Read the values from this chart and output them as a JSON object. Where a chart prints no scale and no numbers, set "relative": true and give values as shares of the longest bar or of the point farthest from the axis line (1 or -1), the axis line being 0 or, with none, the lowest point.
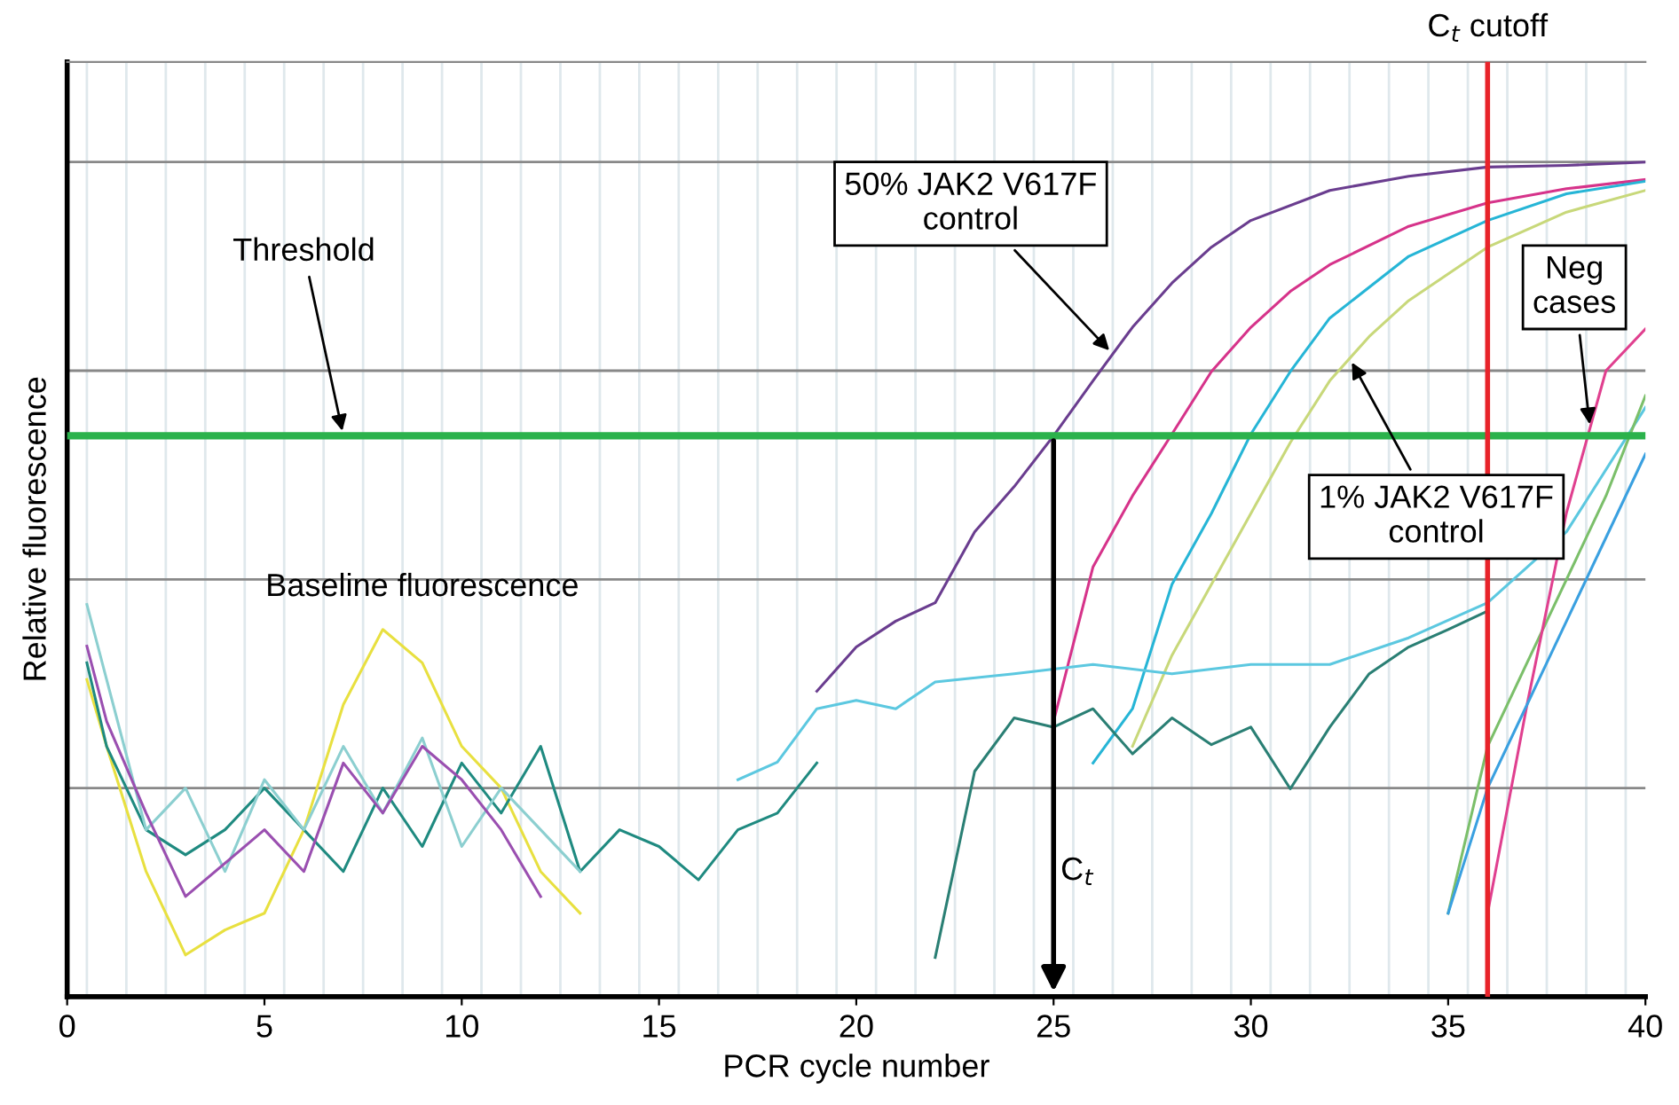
{
  "chart_data": {
    "type": "line",
    "relative": true,
    "xlabel": "PCR cycle number",
    "ylabel": "Relative fluorescence",
    "xlim": [
      0,
      40
    ],
    "xticks": [
      0,
      5,
      10,
      15,
      20,
      25,
      30,
      35,
      40
    ],
    "grid": true,
    "marker": "none",
    "line_style": "solid",
    "series": [
      {
        "color": "#6a3d8f",
        "x": [
          19,
          20,
          21,
          22,
          23,
          24,
          25,
          26,
          27,
          28,
          29,
          30,
          32,
          34,
          36,
          38,
          40
        ],
        "values": [
          0.366,
          0.419,
          0.45,
          0.472,
          0.557,
          0.611,
          0.672,
          0.738,
          0.802,
          0.855,
          0.898,
          0.93,
          0.966,
          0.983,
          0.994,
          0.996,
          1.0
        ]
      },
      {
        "color": "#d6338a",
        "x": [
          25,
          26,
          27,
          28,
          29,
          30,
          31,
          32,
          34,
          36,
          38,
          40
        ],
        "values": [
          0.33,
          0.515,
          0.6,
          0.674,
          0.749,
          0.802,
          0.845,
          0.877,
          0.923,
          0.951,
          0.968,
          0.979
        ]
      },
      {
        "color": "#26b5d6",
        "x": [
          26,
          27,
          28,
          29,
          30,
          31,
          32,
          34,
          36,
          38,
          40
        ],
        "values": [
          0.28,
          0.345,
          0.494,
          0.579,
          0.674,
          0.749,
          0.813,
          0.887,
          0.93,
          0.962,
          0.977
        ]
      },
      {
        "color": "#c8d87a",
        "x": [
          27,
          28,
          29,
          30,
          31,
          32,
          33,
          34,
          36,
          38,
          40
        ],
        "values": [
          0.3,
          0.409,
          0.494,
          0.579,
          0.664,
          0.738,
          0.791,
          0.834,
          0.898,
          0.94,
          0.966
        ]
      },
      {
        "color": "#2a7f74",
        "x": [
          22,
          23,
          24,
          25,
          26,
          27,
          28,
          29,
          30,
          31,
          32,
          33,
          34,
          35,
          36
        ],
        "values": [
          0.047,
          0.27,
          0.334,
          0.323,
          0.345,
          0.291,
          0.334,
          0.302,
          0.323,
          0.249,
          0.323,
          0.387,
          0.419,
          0.44,
          0.462
        ]
      },
      {
        "color": "#5cc8e0",
        "x": [
          17,
          18,
          19,
          20,
          21,
          22,
          24,
          26,
          28,
          30,
          32,
          34,
          36,
          38,
          40
        ],
        "values": [
          0.26,
          0.281,
          0.345,
          0.355,
          0.345,
          0.377,
          0.387,
          0.398,
          0.387,
          0.398,
          0.398,
          0.43,
          0.472,
          0.557,
          0.706
        ]
      },
      {
        "color": "#7bbf6a",
        "x": [
          35,
          36,
          37,
          38,
          39,
          40
        ],
        "values": [
          0.1,
          0.3,
          0.4,
          0.5,
          0.6,
          0.72
        ]
      },
      {
        "color": "#e0408f",
        "x": [
          36,
          37,
          38,
          39,
          40
        ],
        "values": [
          0.1,
          0.35,
          0.58,
          0.75,
          0.8
        ]
      },
      {
        "color": "#3aa0e0",
        "x": [
          35,
          36,
          37,
          38,
          39,
          40
        ],
        "values": [
          0.1,
          0.25,
          0.35,
          0.45,
          0.55,
          0.65
        ]
      },
      {
        "color": "#e8e040",
        "x": [
          0.5,
          1,
          2,
          3,
          4,
          5,
          6,
          7,
          8,
          9,
          10,
          11,
          12,
          13
        ],
        "values": [
          0.38,
          0.3,
          0.15,
          0.05,
          0.08,
          0.1,
          0.2,
          0.35,
          0.44,
          0.4,
          0.3,
          0.25,
          0.15,
          0.1
        ]
      },
      {
        "color": "#1f8a80",
        "x": [
          0.5,
          1,
          2,
          3,
          4,
          5,
          6,
          7,
          8,
          9,
          10,
          11,
          12,
          13,
          14,
          15,
          16,
          17,
          18,
          19
        ],
        "values": [
          0.4,
          0.3,
          0.2,
          0.17,
          0.2,
          0.25,
          0.2,
          0.15,
          0.25,
          0.18,
          0.28,
          0.22,
          0.3,
          0.15,
          0.2,
          0.18,
          0.14,
          0.2,
          0.22,
          0.28
        ]
      },
      {
        "color": "#8ccfd0",
        "x": [
          0.5,
          1,
          2,
          3,
          4,
          5,
          6,
          7,
          8,
          9,
          10,
          11,
          12,
          13
        ],
        "values": [
          0.47,
          0.38,
          0.2,
          0.25,
          0.15,
          0.26,
          0.2,
          0.3,
          0.22,
          0.31,
          0.18,
          0.25,
          0.2,
          0.15
        ]
      },
      {
        "color": "#9a4fb0",
        "x": [
          0.5,
          1,
          2,
          3,
          5,
          6,
          7,
          8,
          9,
          10,
          11,
          12
        ],
        "values": [
          0.42,
          0.33,
          0.22,
          0.12,
          0.2,
          0.15,
          0.28,
          0.22,
          0.3,
          0.26,
          0.2,
          0.12
        ]
      }
    ],
    "ref_lines": [
      {
        "axis": "y",
        "value": 0.672,
        "label": "Threshold",
        "color": "#2bb24c"
      },
      {
        "axis": "x",
        "value": 36,
        "label": "C$_{t}$ cutoff",
        "color": "#e8232a"
      }
    ],
    "annotations": [
      {
        "text": "50% JAK2 V617F control",
        "x": 26.5,
        "y": 0.77
      },
      {
        "text": "1% JAK2 V617F control",
        "x": 32.5,
        "y": 0.765
      },
      {
        "text": "Neg cases",
        "x": 38.6,
        "y": 0.68
      },
      "C$_{t}$",
      "Baseline fluorescence"
    ]
  }
}
